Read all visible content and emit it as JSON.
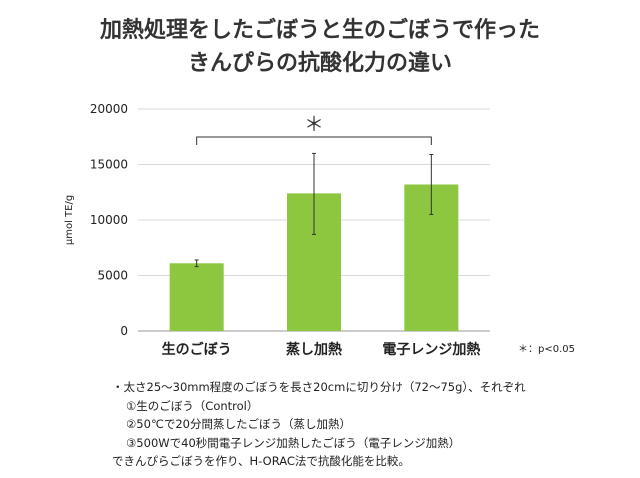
{
  "title_lines": [
    "加熱処理をしたごぼうと生のごぼうで作った",
    "きんぴらの抗酸化力の違い"
  ],
  "chart_data": {
    "type": "bar",
    "categories": [
      "生のごぼう",
      "蒸し加熱",
      "電子レンジ加熱"
    ],
    "values": [
      6100,
      12400,
      13200
    ],
    "error_low": [
      5800,
      8700,
      10500
    ],
    "error_high": [
      6400,
      16000,
      15900
    ],
    "ylabel": "μmol TE/g",
    "ylim": [
      0,
      20000
    ],
    "yticks": [
      "0",
      "5000",
      "10000",
      "15000",
      "20000"
    ],
    "grid": true,
    "significance": {
      "between": [
        1,
        2
      ],
      "label": "＊"
    },
    "annotation": "＊：p<0.05",
    "bar_color": "#8dc63f"
  },
  "footnote": [
    "・太さ25〜30mm程度のごぼうを長さ20cmに切り分け（72〜75g）、それぞれ",
    "①生のごぼう（Control）",
    "②50℃で20分間蒸したごぼう（蒸し加熱）",
    "③500Wで40秒間電子レンジ加熱したごぼう（電子レンジ加熱）",
    "できんぴらごぼうを作り、H-ORAC法で抗酸化能を比較。"
  ]
}
